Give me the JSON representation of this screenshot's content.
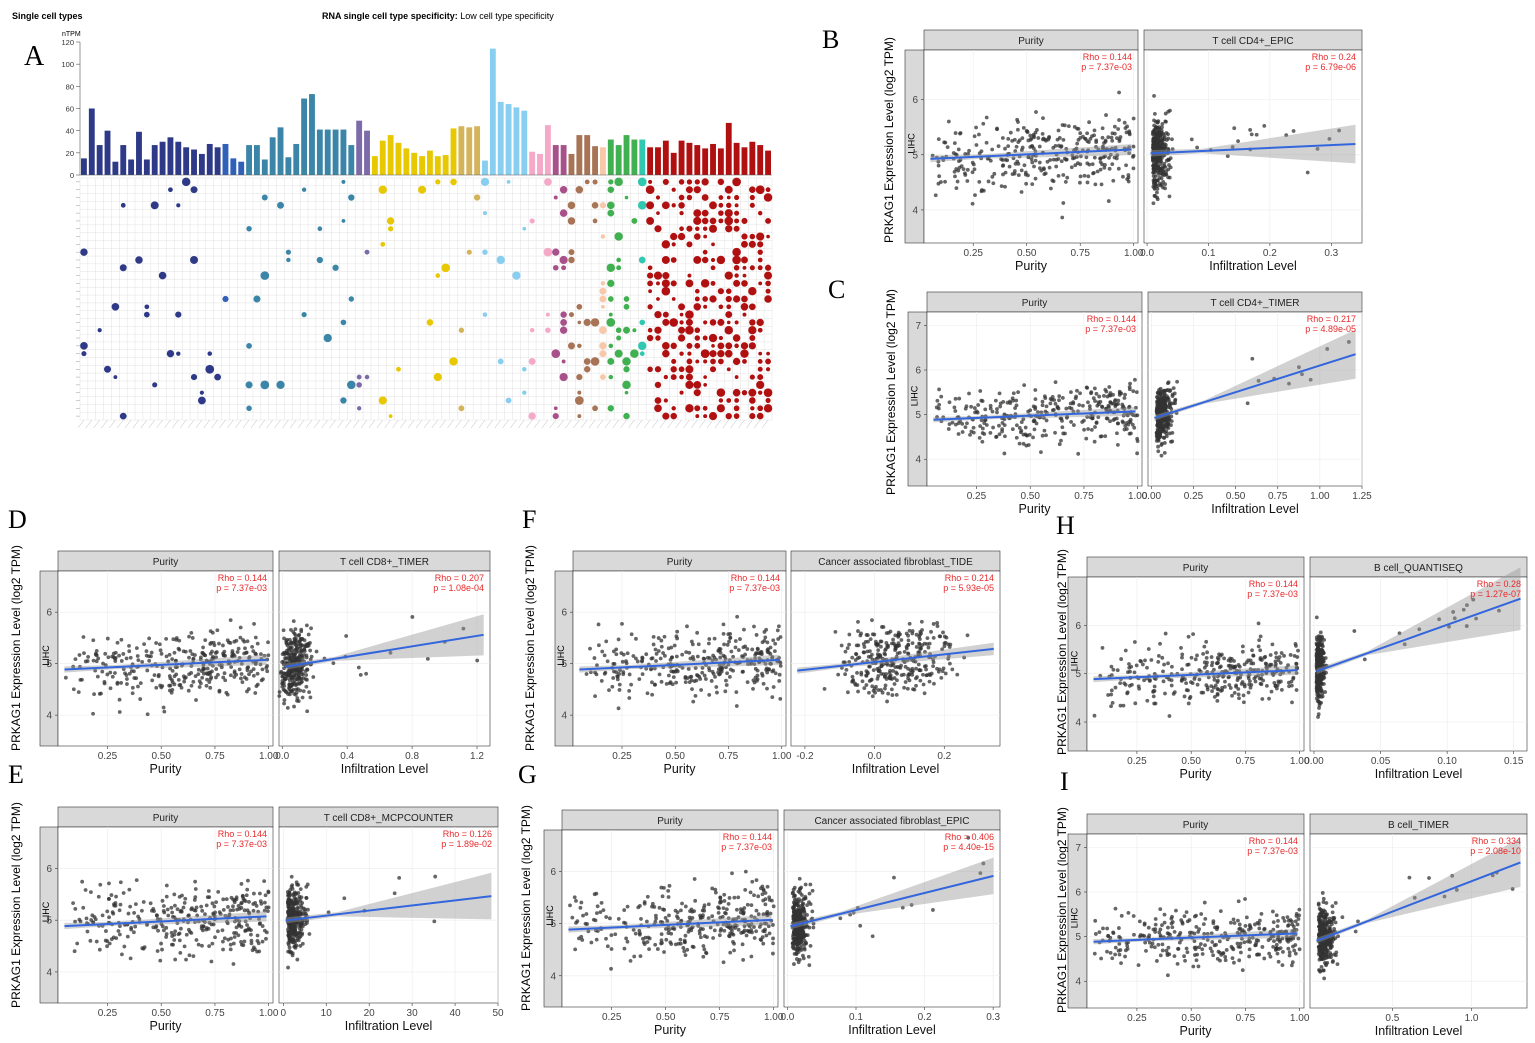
{
  "panel_a": {
    "letter": "A",
    "title_left": "Single cell types",
    "title_prefix": "RNA single cell type specificity:",
    "title_value": "Low cell type specificity",
    "unit": "nTPM",
    "yticks": [
      0,
      20,
      40,
      60,
      80,
      100,
      120
    ]
  },
  "common": {
    "ylabel": "PRKAG1 Expression Level (log2 TPM)",
    "strip": "LIHC",
    "left_facet": "Purity",
    "left_xlabel": "Purity",
    "right_xlabel": "Infiltration Level",
    "left_rho": "Rho = 0.144",
    "left_p": "p = 7.37e-03"
  },
  "chart_data": [
    {
      "type": "bar",
      "panel": "A",
      "title": "RNA single cell type specificity: Low cell type specificity",
      "ylabel": "nTPM",
      "ylim": [
        0,
        120
      ],
      "bar_colors": [
        "#2e3a87",
        "#2e3a87",
        "#2e3a87",
        "#2e3a87",
        "#2e3a87",
        "#2e3a87",
        "#2e3a87",
        "#2e3a87",
        "#2e3a87",
        "#2e3a87",
        "#2e3a87",
        "#2e3a87",
        "#2e3a87",
        "#2e3a87",
        "#2e3a87",
        "#2e3a87",
        "#2e3a87",
        "#2e3a87",
        "#3060b8",
        "#3060b8",
        "#3060b8",
        "#3b86a8",
        "#3b86a8",
        "#3b86a8",
        "#3b86a8",
        "#3b86a8",
        "#3b86a8",
        "#3b86a8",
        "#3b86a8",
        "#3b86a8",
        "#3b86a8",
        "#3b86a8",
        "#3b86a8",
        "#3b86a8",
        "#3b86a8",
        "#7d6aa8",
        "#7d6aa8",
        "#e8c800",
        "#e8c800",
        "#e8c800",
        "#e8c800",
        "#e8c800",
        "#e8c800",
        "#e8c800",
        "#e8c800",
        "#e8c800",
        "#e8c800",
        "#e8c800",
        "#d4b45a",
        "#d4b45a",
        "#d4b45a",
        "#87cef0",
        "#87cef0",
        "#87cef0",
        "#87cef0",
        "#87cef0",
        "#87cef0",
        "#f5a8c8",
        "#f5a8c8",
        "#f5a8c8",
        "#a8508a",
        "#a8508a",
        "#a87456",
        "#a87456",
        "#a87456",
        "#a87456",
        "#f8c8a8",
        "#40b050",
        "#40b050",
        "#40b050",
        "#40b050",
        "#30c8b0",
        "#b01010",
        "#b01010",
        "#b01010",
        "#b01010",
        "#b01010",
        "#b01010",
        "#b01010",
        "#b01010",
        "#b01010",
        "#b01010",
        "#b01010",
        "#b01010",
        "#b01010",
        "#b01010",
        "#b01010",
        "#b01010"
      ],
      "values": [
        15,
        60,
        27,
        40,
        12,
        27,
        14,
        39,
        14,
        27,
        30,
        34,
        30,
        25,
        23,
        19,
        28,
        25,
        28,
        15,
        12,
        27,
        27,
        14,
        34,
        43,
        16,
        28,
        69,
        73,
        41,
        41,
        41,
        41,
        27,
        49,
        40,
        17,
        31,
        36,
        29,
        24,
        20,
        17,
        22,
        17,
        18,
        42,
        44,
        43,
        44,
        13,
        114,
        66,
        64,
        61,
        58,
        21,
        19,
        45,
        27,
        27,
        19,
        36,
        36,
        26,
        25,
        32,
        27,
        36,
        32,
        32,
        25,
        25,
        31,
        20,
        31,
        29,
        27,
        24,
        28,
        24,
        47,
        29,
        25,
        30,
        27,
        22
      ]
    },
    {
      "type": "scatter",
      "panel": "B",
      "facets": [
        "Purity",
        "T cell CD4+_EPIC"
      ],
      "rho": [
        "0.144",
        "0.24"
      ],
      "p": [
        "7.37e-03",
        "6.79e-06"
      ],
      "xlabel": [
        "Purity",
        "Infiltration Level"
      ],
      "ylabel": "PRKAG1 Expression Level (log2 TPM)",
      "ylim": [
        3.4,
        6.9
      ],
      "yticks": [
        4,
        5,
        6
      ],
      "x_ranges": [
        [
          0.02,
          1.02
        ],
        [
          -0.005,
          0.35
        ]
      ],
      "xticks": [
        [
          0.25,
          0.5,
          0.75,
          1.0
        ],
        [
          0.0,
          0.1,
          0.2,
          0.3
        ]
      ],
      "xtick_labels": [
        [
          "0.25",
          "0.50",
          "0.75",
          "1.00"
        ],
        [
          "0.0",
          "0.1",
          "0.2",
          "0.3"
        ]
      ],
      "fit": [
        [
          4.92,
          5.1
        ],
        [
          5.02,
          5.2
        ]
      ],
      "spread": "low",
      "ci_end_width": 0.35
    },
    {
      "type": "scatter",
      "panel": "C",
      "facets": [
        "Purity",
        "T cell CD4+_TIMER"
      ],
      "rho": [
        "0.144",
        "0.217"
      ],
      "p": [
        "7.37e-03",
        "4.89e-05"
      ],
      "xlabel": [
        "Purity",
        "Infiltration Level"
      ],
      "ylabel": "PRKAG1 Expression Level (log2 TPM)",
      "ylim": [
        3.4,
        7.3
      ],
      "yticks": [
        4,
        5,
        6,
        7
      ],
      "x_ranges": [
        [
          0.02,
          1.02
        ],
        [
          -0.02,
          1.25
        ]
      ],
      "xticks": [
        [
          0.25,
          0.5,
          0.75,
          1.0
        ],
        [
          0.0,
          0.25,
          0.5,
          0.75,
          1.0,
          1.25
        ]
      ],
      "xtick_labels": [
        [
          "0.25",
          "0.50",
          "0.75",
          "1.00"
        ],
        [
          "0.00",
          "0.25",
          "0.50",
          "0.75",
          "1.00",
          "1.25"
        ]
      ],
      "fit": [
        [
          4.88,
          5.08
        ],
        [
          4.88,
          6.4
        ]
      ],
      "spread": "low",
      "ci_end_width": 0.55
    },
    {
      "type": "scatter",
      "panel": "D",
      "facets": [
        "Purity",
        "T cell CD8+_TIMER"
      ],
      "rho": [
        "0.144",
        "0.207"
      ],
      "p": [
        "7.37e-03",
        "1.08e-04"
      ],
      "xlabel": [
        "Purity",
        "Infiltration Level"
      ],
      "ylabel": "PRKAG1 Expression Level (log2 TPM)",
      "ylim": [
        3.4,
        6.8
      ],
      "yticks": [
        4,
        5,
        6
      ],
      "x_ranges": [
        [
          0.02,
          1.02
        ],
        [
          -0.02,
          1.28
        ]
      ],
      "xticks": [
        [
          0.25,
          0.5,
          0.75,
          1.0
        ],
        [
          0.0,
          0.4,
          0.8,
          1.2
        ]
      ],
      "xtick_labels": [
        [
          "0.25",
          "0.50",
          "0.75",
          "1.00"
        ],
        [
          "0.0",
          "0.4",
          "0.8",
          "1.2"
        ]
      ],
      "fit": [
        [
          4.88,
          5.08
        ],
        [
          4.92,
          5.58
        ]
      ],
      "spread": "mid",
      "ci_end_width": 0.4
    },
    {
      "type": "scatter",
      "panel": "E",
      "facets": [
        "Purity",
        "T cell CD8+_MCPCOUNTER"
      ],
      "rho": [
        "0.144",
        "0.126"
      ],
      "p": [
        "7.37e-03",
        "1.89e-02"
      ],
      "xlabel": [
        "Purity",
        "Infiltration Level"
      ],
      "ylabel": "PRKAG1 Expression Level (log2 TPM)",
      "ylim": [
        3.4,
        6.8
      ],
      "yticks": [
        4,
        5,
        6
      ],
      "x_ranges": [
        [
          0.02,
          1.02
        ],
        [
          -1,
          50
        ]
      ],
      "xticks": [
        [
          0.25,
          0.5,
          0.75,
          1.0
        ],
        [
          0,
          10,
          20,
          30,
          40,
          50
        ]
      ],
      "xtick_labels": [
        [
          "0.25",
          "0.50",
          "0.75",
          "1.00"
        ],
        [
          "0",
          "10",
          "20",
          "30",
          "40",
          "50"
        ]
      ],
      "fit": [
        [
          4.88,
          5.08
        ],
        [
          4.98,
          5.48
        ]
      ],
      "spread": "low",
      "ci_end_width": 0.45
    },
    {
      "type": "scatter",
      "panel": "F",
      "facets": [
        "Purity",
        "Cancer associated fibroblast_TIDE"
      ],
      "rho": [
        "0.144",
        "0.214"
      ],
      "p": [
        "7.37e-03",
        "5.93e-05"
      ],
      "xlabel": [
        "Purity",
        "Infiltration Level"
      ],
      "ylabel": "PRKAG1 Expression Level (log2 TPM)",
      "ylim": [
        3.4,
        6.8
      ],
      "yticks": [
        4,
        5,
        6
      ],
      "x_ranges": [
        [
          0.02,
          1.02
        ],
        [
          -0.24,
          0.36
        ]
      ],
      "xticks": [
        [
          0.25,
          0.5,
          0.75,
          1.0
        ],
        [
          -0.2,
          0.0,
          0.2
        ]
      ],
      "xtick_labels": [
        [
          "0.25",
          "0.50",
          "0.75",
          "1.00"
        ],
        [
          "-0.2",
          "0.0",
          "0.2"
        ]
      ],
      "fit": [
        [
          4.88,
          5.08
        ],
        [
          4.85,
          5.3
        ]
      ],
      "spread": "wide",
      "ci_end_width": 0.12
    },
    {
      "type": "scatter",
      "panel": "G",
      "facets": [
        "Purity",
        "Cancer associated fibroblast_EPIC"
      ],
      "rho": [
        "0.144",
        "0.406"
      ],
      "p": [
        "7.37e-03",
        "4.40e-15"
      ],
      "xlabel": [
        "Purity",
        "Infiltration Level"
      ],
      "ylabel": "PRKAG1 Expression Level (log2 TPM)",
      "ylim": [
        3.4,
        6.8
      ],
      "yticks": [
        4,
        5,
        6
      ],
      "x_ranges": [
        [
          0.02,
          1.02
        ],
        [
          -0.005,
          0.31
        ]
      ],
      "xticks": [
        [
          0.25,
          0.5,
          0.75,
          1.0
        ],
        [
          0.0,
          0.1,
          0.2,
          0.3
        ]
      ],
      "xtick_labels": [
        [
          "0.25",
          "0.50",
          "0.75",
          "1.00"
        ],
        [
          "0.0",
          "0.1",
          "0.2",
          "0.3"
        ]
      ],
      "fit": [
        [
          4.88,
          5.08
        ],
        [
          4.92,
          5.95
        ]
      ],
      "spread": "low",
      "ci_end_width": 0.35
    },
    {
      "type": "scatter",
      "panel": "H",
      "facets": [
        "Purity",
        "B cell_QUANTISEQ"
      ],
      "rho": [
        "0.144",
        "0.28"
      ],
      "p": [
        "7.37e-03",
        "1.27e-07"
      ],
      "xlabel": [
        "Purity",
        "Infiltration Level"
      ],
      "ylabel": "PRKAG1 Expression Level (log2 TPM)",
      "ylim": [
        3.4,
        7.0
      ],
      "yticks": [
        4,
        5,
        6
      ],
      "x_ranges": [
        [
          0.02,
          1.02
        ],
        [
          -0.003,
          0.16
        ]
      ],
      "xticks": [
        [
          0.25,
          0.5,
          0.75,
          1.0
        ],
        [
          0.0,
          0.05,
          0.1,
          0.15
        ]
      ],
      "xtick_labels": [
        [
          "0.25",
          "0.50",
          "0.75",
          "1.00"
        ],
        [
          "0.00",
          "0.05",
          "0.10",
          "0.15"
        ]
      ],
      "fit": [
        [
          4.88,
          5.08
        ],
        [
          5.0,
          6.6
        ]
      ],
      "spread": "tiny",
      "ci_end_width": 0.65
    },
    {
      "type": "scatter",
      "panel": "I",
      "facets": [
        "Purity",
        "B cell_TIMER"
      ],
      "rho": [
        "0.144",
        "0.334"
      ],
      "p": [
        "7.37e-03",
        "2.08e-10"
      ],
      "xlabel": [
        "Purity",
        "Infiltration Level"
      ],
      "ylabel": "PRKAG1 Expression Level (log2 TPM)",
      "ylim": [
        3.4,
        7.3
      ],
      "yticks": [
        4,
        5,
        6,
        7
      ],
      "x_ranges": [
        [
          0.02,
          1.02
        ],
        [
          -0.02,
          1.35
        ]
      ],
      "xticks": [
        [
          0.25,
          0.5,
          0.75,
          1.0
        ],
        [
          0.5,
          1.0
        ]
      ],
      "xtick_labels": [
        [
          "0.25",
          "0.50",
          "0.75",
          "1.00"
        ],
        [
          "0.5",
          "1.0"
        ]
      ],
      "fit": [
        [
          4.88,
          5.08
        ],
        [
          4.85,
          6.72
        ]
      ],
      "spread": "low",
      "ci_end_width": 0.55
    }
  ]
}
